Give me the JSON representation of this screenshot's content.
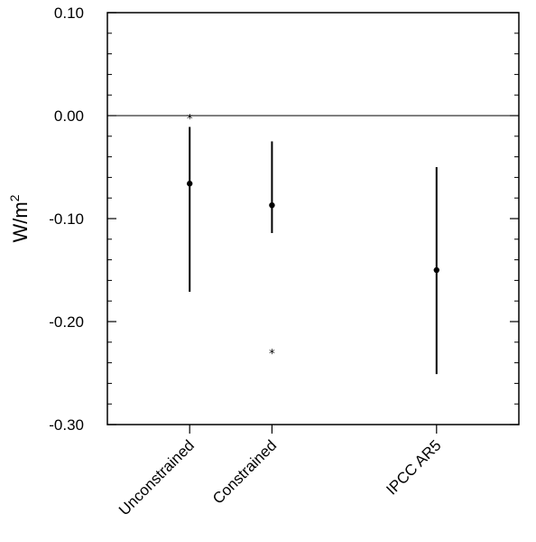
{
  "chart_data": {
    "type": "errorbar",
    "title": "",
    "xlabel": "",
    "ylabel_base": "W/m",
    "ylabel_sup": "2",
    "ylim": [
      -0.3,
      0.1
    ],
    "yticks": [
      {
        "value": 0.1,
        "label": "0.10"
      },
      {
        "value": 0.0,
        "label": "0.00"
      },
      {
        "value": -0.1,
        "label": "-0.10"
      },
      {
        "value": -0.2,
        "label": "-0.20"
      },
      {
        "value": -0.3,
        "label": "-0.30"
      }
    ],
    "reference_line": 0.0,
    "categories": [
      "Unconstrained",
      "Constrained",
      "IPCC AR5"
    ],
    "points": [
      {
        "category": "Unconstrained",
        "x": 1,
        "value": -0.066,
        "low": -0.171,
        "high": -0.011,
        "extra": 0.0
      },
      {
        "category": "Constrained",
        "x": 2,
        "value": -0.087,
        "low": -0.114,
        "high": -0.025,
        "extra": -0.228
      },
      {
        "category": "IPCC AR5",
        "x": 4,
        "value": -0.15,
        "low": -0.251,
        "high": -0.05
      }
    ],
    "xlim": [
      -0.0,
      5.0
    ]
  }
}
